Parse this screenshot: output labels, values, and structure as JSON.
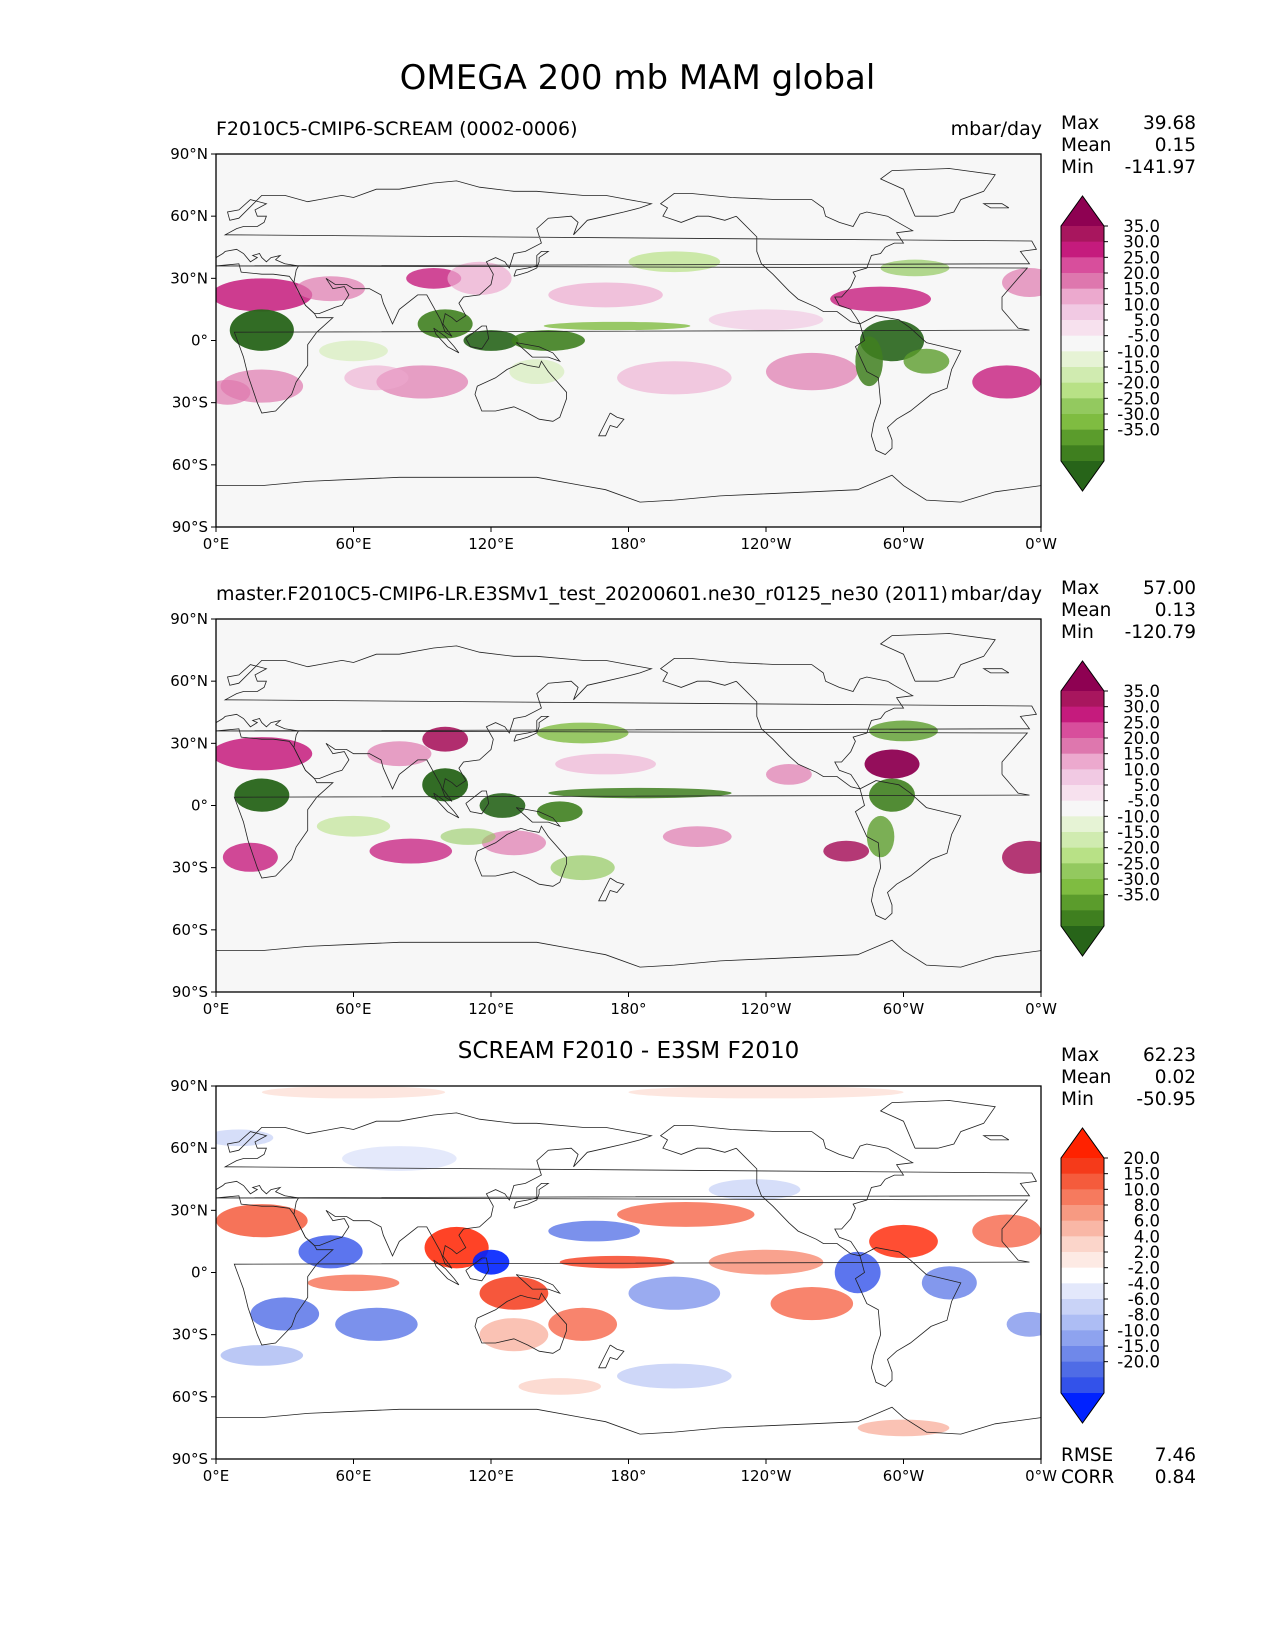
{
  "suptitle": "OMEGA 200 mb MAM global",
  "chart_data": [
    {
      "type": "heatmap",
      "title": "F2010C5-CMIP6-SCREAM (0002-0006)",
      "units": "mbar/day",
      "stats": {
        "max_label": "Max",
        "max": "39.68",
        "mean_label": "Mean",
        "mean": "0.15",
        "min_label": "Min",
        "min": "-141.97"
      },
      "x_ticks": [
        "0°E",
        "60°E",
        "120°E",
        "180°",
        "120°W",
        "60°W",
        "0°W"
      ],
      "y_ticks": [
        "90°N",
        "60°N",
        "30°N",
        "0°",
        "30°S",
        "60°S",
        "90°S"
      ],
      "xlim": [
        0,
        360
      ],
      "ylim": [
        -90,
        90
      ],
      "colorbar": {
        "levels": [
          "35.0",
          "30.0",
          "25.0",
          "20.0",
          "15.0",
          "10.0",
          "5.0",
          "-5.0",
          "-10.0",
          "-15.0",
          "-20.0",
          "-25.0",
          "-30.0",
          "-35.0"
        ],
        "colors": [
          "#8e0152",
          "#a8165e",
          "#c51b7d",
          "#d84e9c",
          "#de77ae",
          "#eca9ce",
          "#f1c9e3",
          "#f7e1ee",
          "#f7f7f7",
          "#e6f3d5",
          "#d0ebb0",
          "#b8e186",
          "#93c95f",
          "#7fbc41",
          "#5b9c2c",
          "#3f7f1f",
          "#276419"
        ]
      }
    },
    {
      "type": "heatmap",
      "title": "master.F2010C5-CMIP6-LR.E3SMv1_test_20200601.ne30_r0125_ne30 (2011)",
      "units": "mbar/day",
      "stats": {
        "max_label": "Max",
        "max": "57.00",
        "mean_label": "Mean",
        "mean": "0.13",
        "min_label": "Min",
        "min": "-120.79"
      },
      "x_ticks": [
        "0°E",
        "60°E",
        "120°E",
        "180°",
        "120°W",
        "60°W",
        "0°W"
      ],
      "y_ticks": [
        "90°N",
        "60°N",
        "30°N",
        "0°",
        "30°S",
        "60°S",
        "90°S"
      ],
      "xlim": [
        0,
        360
      ],
      "ylim": [
        -90,
        90
      ],
      "colorbar": {
        "levels": [
          "35.0",
          "30.0",
          "25.0",
          "20.0",
          "15.0",
          "10.0",
          "5.0",
          "-5.0",
          "-10.0",
          "-15.0",
          "-20.0",
          "-25.0",
          "-30.0",
          "-35.0"
        ],
        "colors": [
          "#8e0152",
          "#a8165e",
          "#c51b7d",
          "#d84e9c",
          "#de77ae",
          "#eca9ce",
          "#f1c9e3",
          "#f7e1ee",
          "#f7f7f7",
          "#e6f3d5",
          "#d0ebb0",
          "#b8e186",
          "#93c95f",
          "#7fbc41",
          "#5b9c2c",
          "#3f7f1f",
          "#276419"
        ]
      }
    },
    {
      "type": "heatmap",
      "title": "SCREAM F2010 - E3SM F2010",
      "stats": {
        "max_label": "Max",
        "max": "62.23",
        "mean_label": "Mean",
        "mean": "0.02",
        "min_label": "Min",
        "min": "-50.95"
      },
      "rmse_label": "RMSE",
      "rmse": "7.46",
      "corr_label": "CORR",
      "corr": "0.84",
      "x_ticks": [
        "0°E",
        "60°E",
        "120°E",
        "180°",
        "120°W",
        "60°W",
        "0°W"
      ],
      "y_ticks": [
        "90°N",
        "60°N",
        "30°N",
        "0°",
        "30°S",
        "60°S",
        "90°S"
      ],
      "xlim": [
        0,
        360
      ],
      "ylim": [
        -90,
        90
      ],
      "colorbar": {
        "levels": [
          "20.0",
          "15.0",
          "10.0",
          "8.0",
          "6.0",
          "4.0",
          "2.0",
          "-2.0",
          "-4.0",
          "-6.0",
          "-8.0",
          "-10.0",
          "-15.0",
          "-20.0"
        ],
        "colors": [
          "#ff2200",
          "#f53a1a",
          "#f55b3c",
          "#f67a5e",
          "#f79a82",
          "#f9b7a6",
          "#fbd5ca",
          "#fdeae4",
          "#ffffff",
          "#e3e8fb",
          "#c9d3f7",
          "#adbdf4",
          "#8ea3ef",
          "#6f88ea",
          "#4f6ce6",
          "#3352ea",
          "#0022ff"
        ]
      }
    }
  ]
}
